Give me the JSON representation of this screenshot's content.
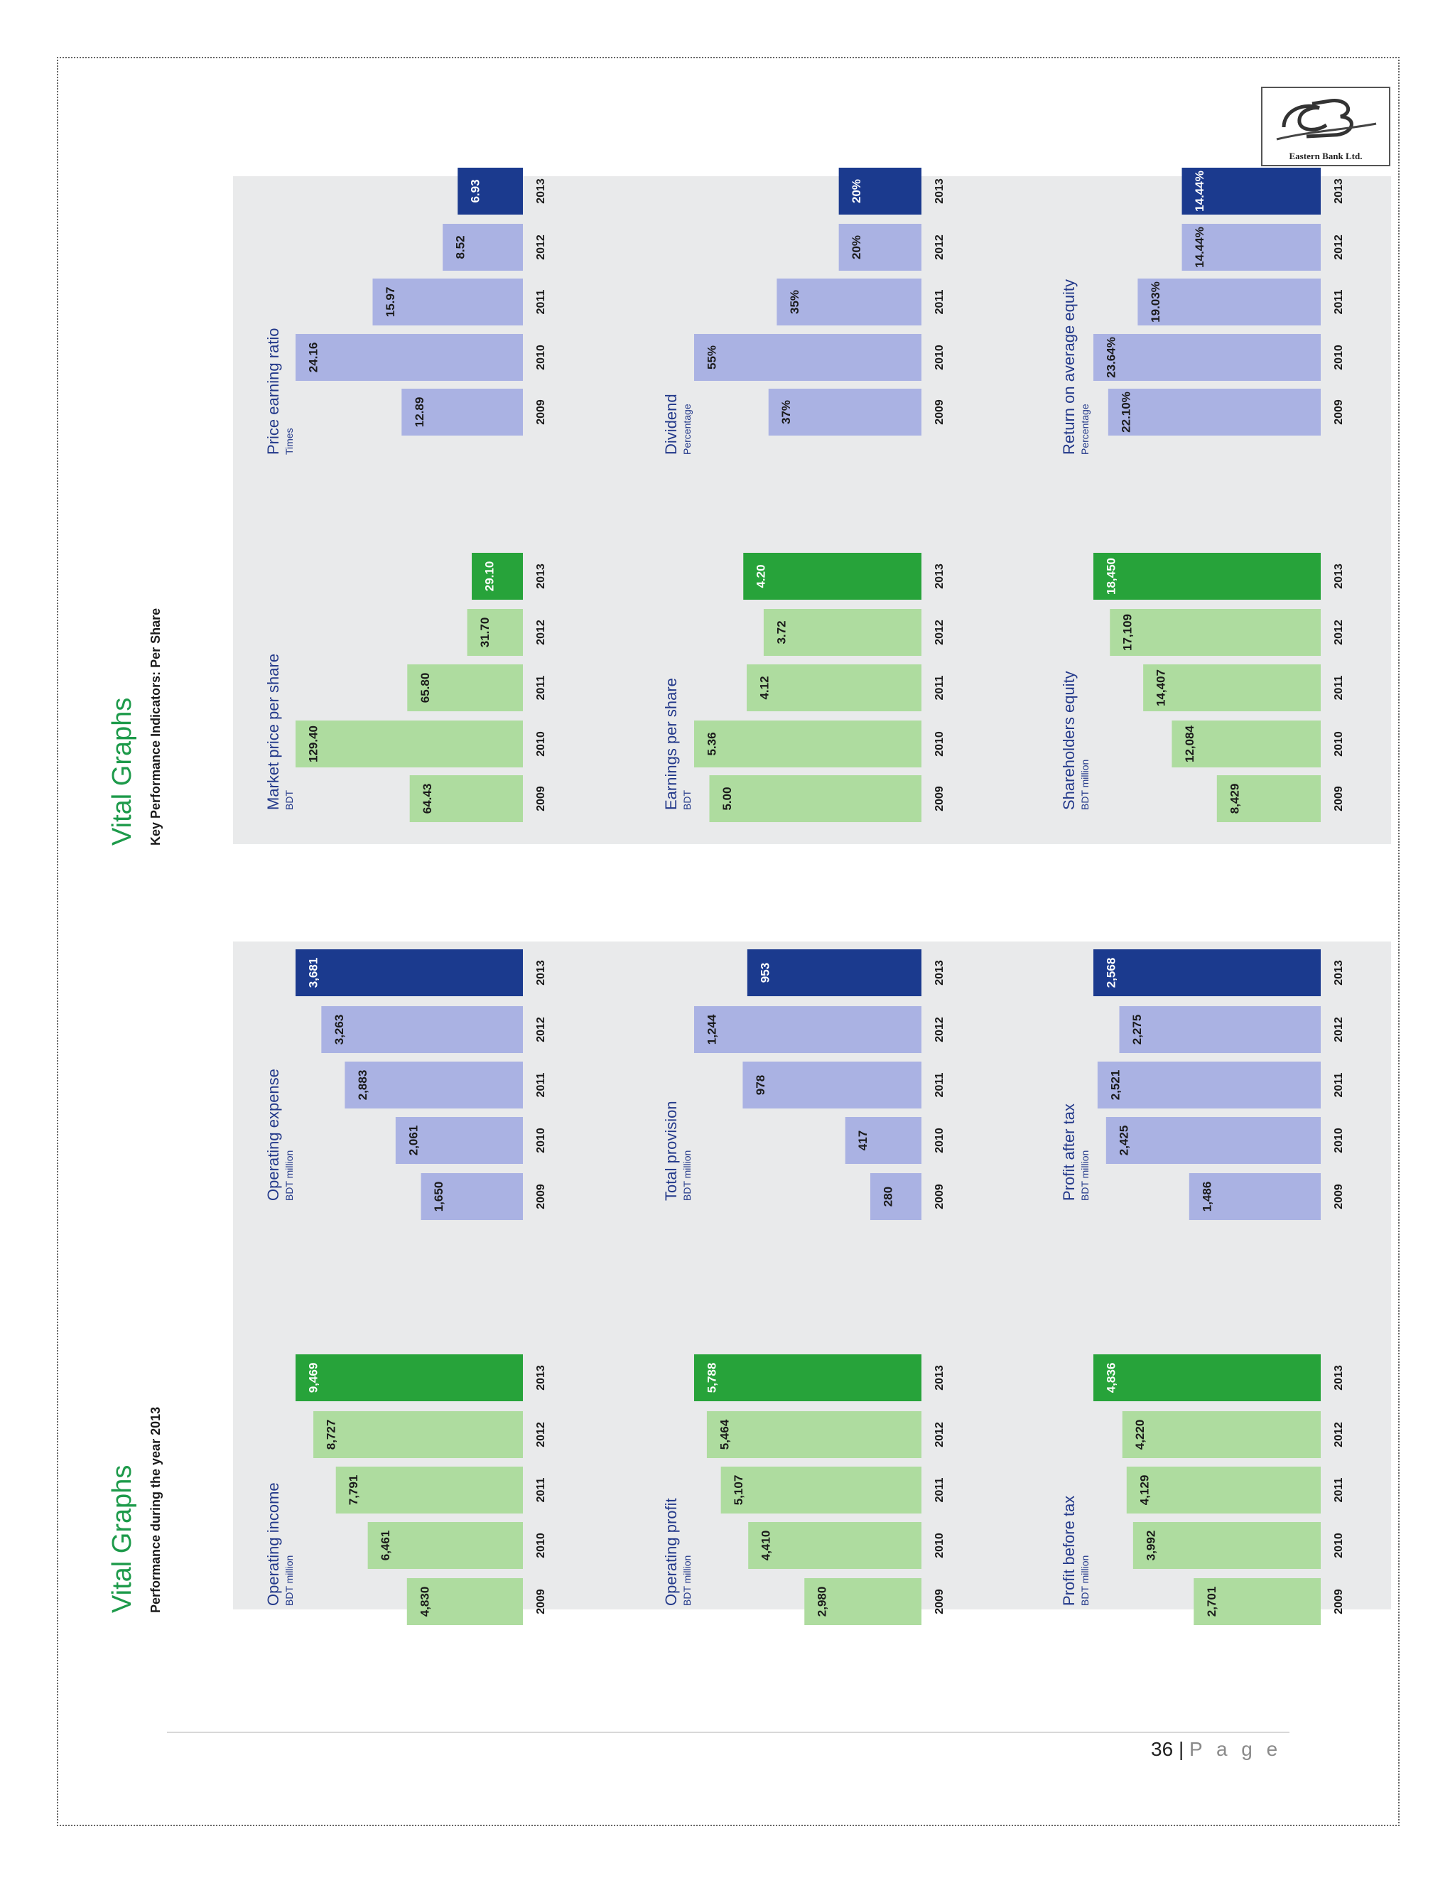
{
  "page": {
    "number": "36",
    "separator": "|",
    "label": "P a g e"
  },
  "logo": {
    "text": "Eastern Bank Ltd."
  },
  "sections": [
    {
      "title": "Vital Graphs",
      "subtitle": "Performance during the year 2013"
    },
    {
      "title": "Vital Graphs",
      "subtitle": "Key Performance Indicators: Per Share"
    }
  ],
  "colors": {
    "panel_bg": "#e9eaeb",
    "green_light": "#aedc9f",
    "green_dark": "#27a33a",
    "blue_light": "#aab2e3",
    "blue_dark": "#1b3a8e",
    "title_green": "#1d9a4a",
    "chart_title_blue": "#23398a"
  },
  "chart_data": [
    {
      "type": "bar",
      "title": "Operating income",
      "subtitle": "BDT million",
      "theme": "green",
      "categories": [
        "2009",
        "2010",
        "2011",
        "2012",
        "2013"
      ],
      "values": [
        4830,
        6461,
        7791,
        8727,
        9469
      ],
      "labels": [
        "4,830",
        "6,461",
        "7,791",
        "8,727",
        "9,469"
      ]
    },
    {
      "type": "bar",
      "title": "Operating expense",
      "subtitle": "BDT million",
      "theme": "blue",
      "categories": [
        "2009",
        "2010",
        "2011",
        "2012",
        "2013"
      ],
      "values": [
        1650,
        2061,
        2883,
        3263,
        3681
      ],
      "labels": [
        "1,650",
        "2,061",
        "2,883",
        "3,263",
        "3,681"
      ]
    },
    {
      "type": "bar",
      "title": "Operating profit",
      "subtitle": "BDT million",
      "theme": "green",
      "categories": [
        "2009",
        "2010",
        "2011",
        "2012",
        "2013"
      ],
      "values": [
        2980,
        4410,
        5107,
        5464,
        5788
      ],
      "labels": [
        "2,980",
        "4,410",
        "5,107",
        "5,464",
        "5,788"
      ]
    },
    {
      "type": "bar",
      "title": "Total provision",
      "subtitle": "BDT million",
      "theme": "blue",
      "categories": [
        "2009",
        "2010",
        "2011",
        "2012",
        "2013"
      ],
      "values": [
        280,
        417,
        978,
        1244,
        953
      ],
      "labels": [
        "280",
        "417",
        "978",
        "1,244",
        "953"
      ]
    },
    {
      "type": "bar",
      "title": "Profit before tax",
      "subtitle": "BDT million",
      "theme": "green",
      "categories": [
        "2009",
        "2010",
        "2011",
        "2012",
        "2013"
      ],
      "values": [
        2701,
        3992,
        4129,
        4220,
        4836
      ],
      "labels": [
        "2,701",
        "3,992",
        "4,129",
        "4,220",
        "4,836"
      ]
    },
    {
      "type": "bar",
      "title": "Profit after tax",
      "subtitle": "BDT million",
      "theme": "blue",
      "categories": [
        "2009",
        "2010",
        "2011",
        "2012",
        "2013"
      ],
      "values": [
        1486,
        2425,
        2521,
        2275,
        2568
      ],
      "labels": [
        "1,486",
        "2,425",
        "2,521",
        "2,275",
        "2,568"
      ]
    },
    {
      "type": "bar",
      "title": "Market price per share",
      "subtitle": "BDT",
      "theme": "green",
      "categories": [
        "2009",
        "2010",
        "2011",
        "2012",
        "2013"
      ],
      "values": [
        64.43,
        129.4,
        65.8,
        31.7,
        29.1
      ],
      "labels": [
        "64.43",
        "129.40",
        "65.80",
        "31.70",
        "29.10"
      ]
    },
    {
      "type": "bar",
      "title": "Price earning ratio",
      "subtitle": "Times",
      "theme": "blue",
      "categories": [
        "2009",
        "2010",
        "2011",
        "2012",
        "2013"
      ],
      "values": [
        12.89,
        24.16,
        15.97,
        8.52,
        6.93
      ],
      "labels": [
        "12.89",
        "24.16",
        "15.97",
        "8.52",
        "6.93"
      ]
    },
    {
      "type": "bar",
      "title": "Earnings per share",
      "subtitle": "BDT",
      "theme": "green",
      "categories": [
        "2009",
        "2010",
        "2011",
        "2012",
        "2013"
      ],
      "values": [
        5.0,
        5.36,
        4.12,
        3.72,
        4.2
      ],
      "labels": [
        "5.00",
        "5.36",
        "4.12",
        "3.72",
        "4.20"
      ]
    },
    {
      "type": "bar",
      "title": "Dividend",
      "subtitle": "Percentage",
      "theme": "blue",
      "categories": [
        "2009",
        "2010",
        "2011",
        "2012",
        "2013"
      ],
      "values": [
        37,
        55,
        35,
        20,
        20
      ],
      "labels": [
        "37%",
        "55%",
        "35%",
        "20%",
        "20%"
      ]
    },
    {
      "type": "bar",
      "title": "Shareholders equity",
      "subtitle": "BDT million",
      "theme": "green",
      "categories": [
        "2009",
        "2010",
        "2011",
        "2012",
        "2013"
      ],
      "values": [
        8429,
        12084,
        14407,
        17109,
        18450
      ],
      "labels": [
        "8,429",
        "12,084",
        "14,407",
        "17,109",
        "18,450"
      ]
    },
    {
      "type": "bar",
      "title": "Return on average equity",
      "subtitle": "Percentage",
      "theme": "blue",
      "categories": [
        "2009",
        "2010",
        "2011",
        "2012",
        "2013"
      ],
      "values": [
        22.1,
        23.64,
        19.03,
        14.44,
        14.44
      ],
      "labels": [
        "22.10%",
        "23.64%",
        "19.03%",
        "14.44%",
        "14.44%"
      ]
    }
  ]
}
